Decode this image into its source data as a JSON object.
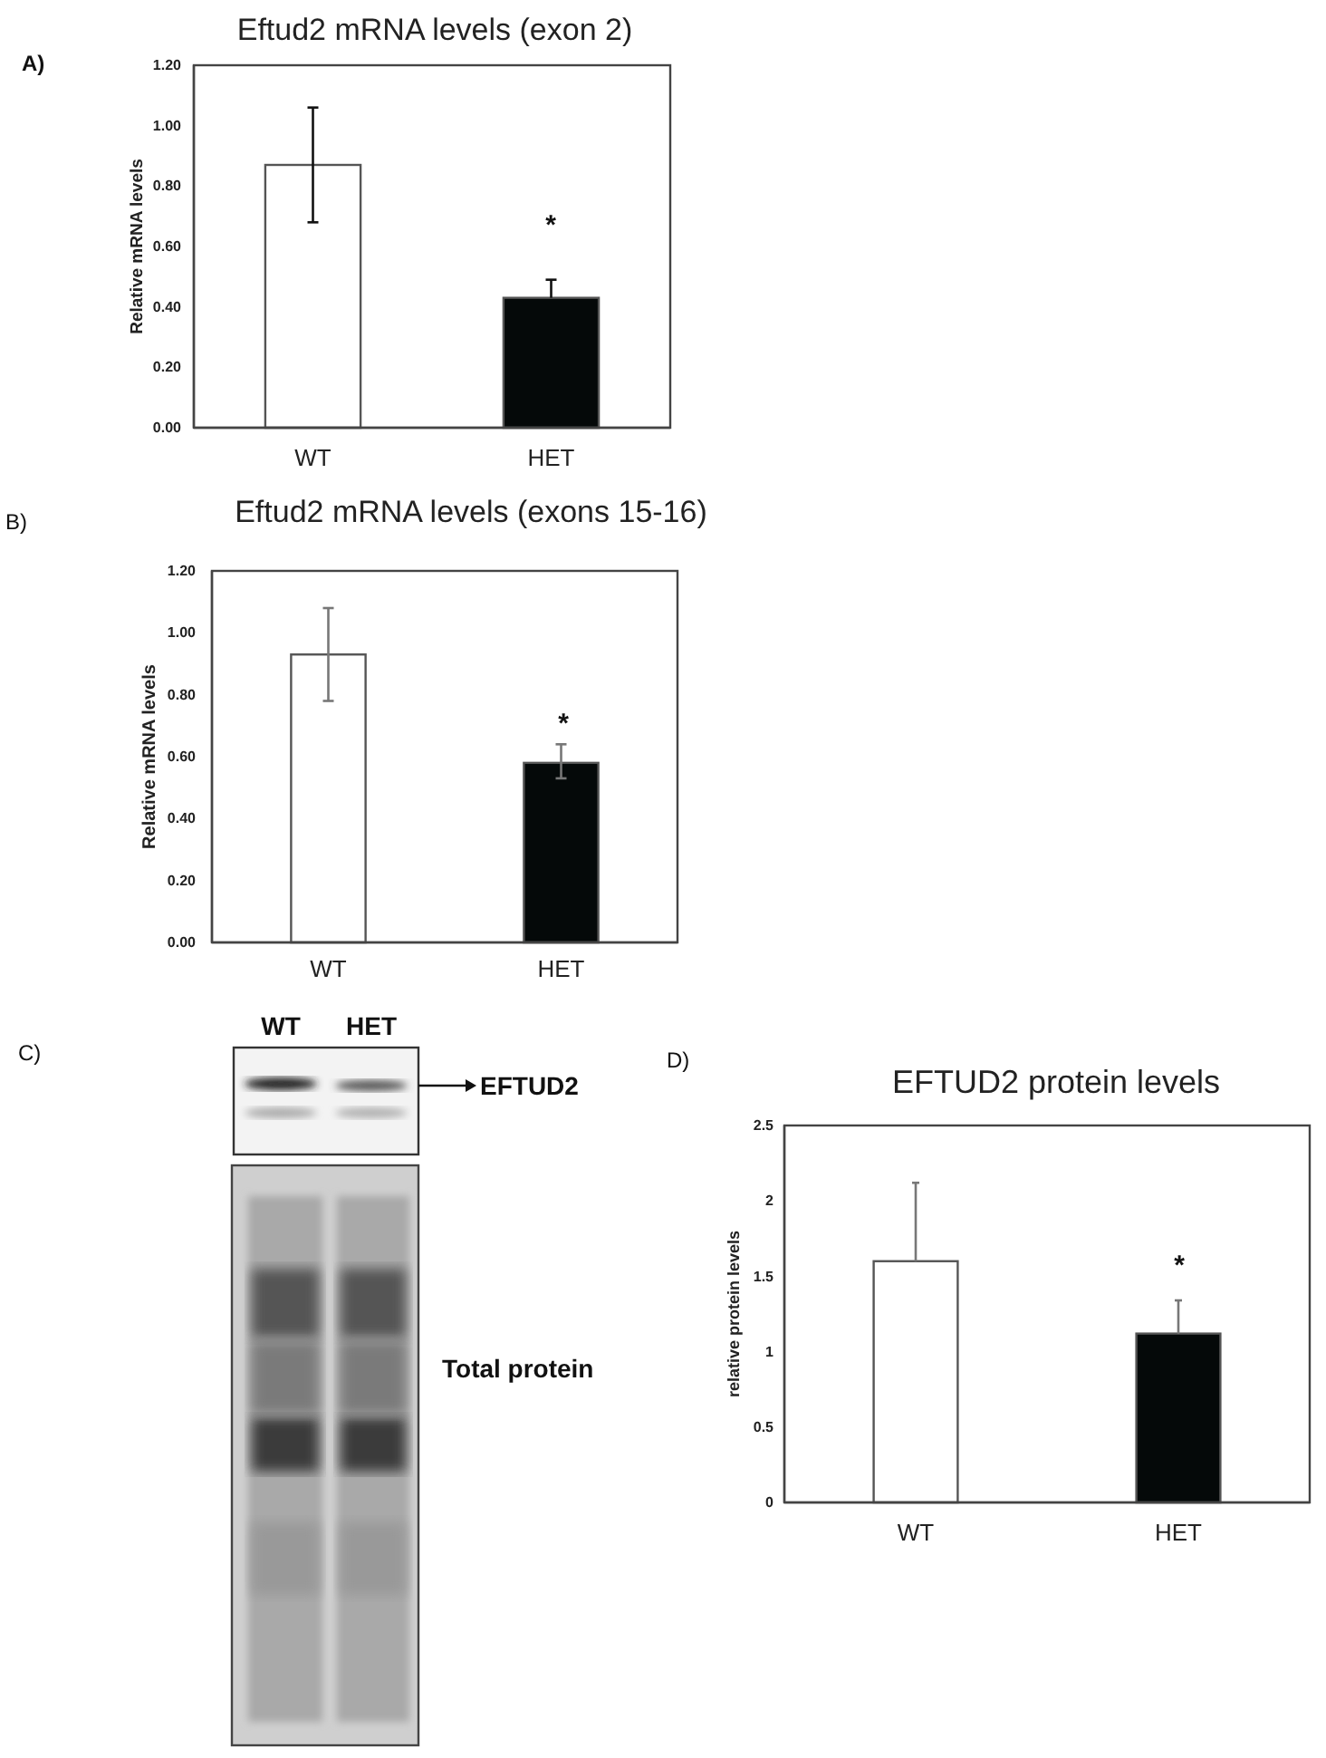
{
  "chart_data": [
    {
      "type": "bar",
      "title": "Eftud2 mRNA levels (exon 2)",
      "ylabel": "Relative mRNA levels",
      "categories": [
        "WT",
        "HET"
      ],
      "values": [
        0.87,
        0.43
      ],
      "colors": [
        "#ffffff",
        "#050909"
      ],
      "errors": [
        0.19,
        [
          0.43,
          0.49
        ]
      ],
      "ylim": [
        0,
        1.2
      ],
      "yticks": [
        {
          "value": 0,
          "label": "0.00"
        },
        {
          "value": 0.2,
          "label": "0.20"
        },
        {
          "value": 0.4,
          "label": "0.40"
        },
        {
          "value": 0.6,
          "label": "0.60"
        },
        {
          "value": 0.8,
          "label": "0.80"
        },
        {
          "value": 1,
          "label": "1.00"
        },
        {
          "value": 1.2,
          "label": "1.20"
        }
      ],
      "annotations": [
        "A)",
        "*"
      ]
    },
    {
      "type": "bar",
      "title": "Eftud2 mRNA levels (exons 15-16)",
      "ylabel": "Relative mRNA levels",
      "categories": [
        "WT",
        "HET"
      ],
      "values": [
        0.93,
        0.58
      ],
      "colors": [
        "#ffffff",
        "#050909"
      ],
      "errors": [
        0.15,
        [
          0.53,
          0.64
        ]
      ],
      "ylim": [
        0,
        1.2
      ],
      "yticks": [
        {
          "value": 0,
          "label": "0.00"
        },
        {
          "value": 0.2,
          "label": "0.20"
        },
        {
          "value": 0.4,
          "label": "0.40"
        },
        {
          "value": 0.6,
          "label": "0.60"
        },
        {
          "value": 0.8,
          "label": "0.80"
        },
        {
          "value": 1,
          "label": "1.00"
        },
        {
          "value": 1.2,
          "label": "1.20"
        }
      ],
      "annotations": [
        "B)",
        "*"
      ]
    },
    {
      "type": "other",
      "annotations": [
        "C)",
        "WT",
        "HET",
        "EFTUD2",
        "Total protein"
      ]
    },
    {
      "type": "bar",
      "title": "EFTUD2 protein levels",
      "ylabel": "relative protein levels",
      "categories": [
        "WT",
        "HET"
      ],
      "values": [
        1.6,
        1.12
      ],
      "colors": [
        "#ffffff",
        "#050909"
      ],
      "errors": [
        [
          1.6,
          2.12
        ],
        [
          1.12,
          1.34
        ]
      ],
      "ylim": [
        0,
        2.5
      ],
      "yticks": [
        0,
        0.5,
        1,
        1.5,
        2,
        2.5
      ],
      "annotations": [
        "D)",
        "*"
      ]
    }
  ]
}
